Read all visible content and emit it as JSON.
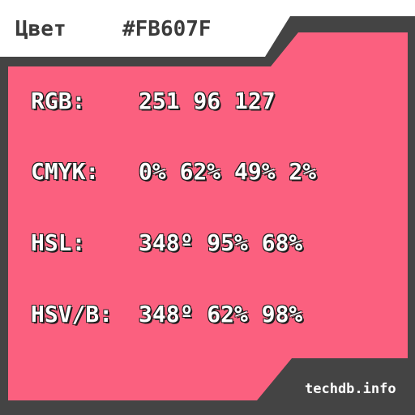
{
  "header": {
    "label": "Цвет",
    "hex": "#FB607F"
  },
  "rows": [
    {
      "label": "RGB:",
      "value": "251 96 127"
    },
    {
      "label": "CMYK:",
      "value": "0% 62% 49% 2%"
    },
    {
      "label": "HSL:",
      "value": "348º 95% 68%"
    },
    {
      "label": "HSV/B:",
      "value": "348º 62% 98%"
    }
  ],
  "footer": {
    "site": "techdb.info"
  },
  "colors": {
    "swatch": "#FB607F",
    "frame": "#444444",
    "background": "#FFFFFF"
  }
}
